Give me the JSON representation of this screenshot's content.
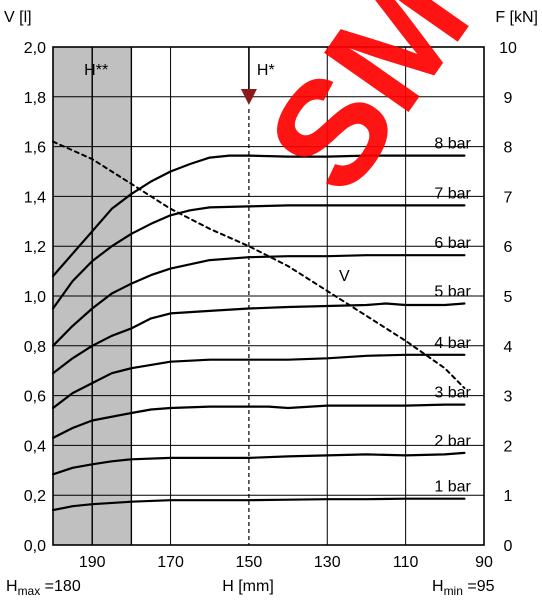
{
  "watermark_text": "SM",
  "chart_data": {
    "type": "line",
    "title": "",
    "x_axis": {
      "label": "H [mm]",
      "range": [
        200,
        90
      ],
      "ticks": [
        190,
        170,
        150,
        130,
        110,
        90
      ],
      "tick_labels": [
        "190",
        "170",
        "150",
        "130",
        "110",
        "90"
      ]
    },
    "y_left": {
      "label": "V [l]",
      "range": [
        0,
        2
      ],
      "ticks": [
        0,
        0.2,
        0.4,
        0.6,
        0.8,
        1.0,
        1.2,
        1.4,
        1.6,
        1.8,
        2.0
      ],
      "tick_labels": [
        "0,0",
        "0,2",
        "0,4",
        "0,6",
        "0,8",
        "1,0",
        "1,2",
        "1,4",
        "1,6",
        "1,8",
        "2,0"
      ]
    },
    "y_right": {
      "label": "F [kN]",
      "range": [
        0,
        10
      ],
      "ticks": [
        0,
        1,
        2,
        3,
        4,
        5,
        6,
        7,
        8,
        9,
        10
      ],
      "tick_labels": [
        "0",
        "1",
        "2",
        "3",
        "4",
        "5",
        "6",
        "7",
        "8",
        "9",
        "10"
      ]
    },
    "grid": true,
    "shaded_region": {
      "x_from": 200,
      "x_to": 180,
      "label": "H**",
      "color": "#c0c0c0"
    },
    "vertical_lines": [
      {
        "x": 190,
        "style": "solid"
      },
      {
        "x": 180,
        "style": "solid"
      },
      {
        "x": 150,
        "style": "dashed",
        "label": "H*"
      }
    ],
    "footer_labels": {
      "hmax_prefix": "H",
      "hmax_sub": "max",
      "hmax_value": " =180",
      "hmin_prefix": "H",
      "hmin_sub": "min",
      "hmin_value": " =95"
    },
    "series": [
      {
        "name": "1 bar",
        "axis": "right",
        "points": [
          [
            200,
            0.7
          ],
          [
            195,
            0.78
          ],
          [
            190,
            0.82
          ],
          [
            180,
            0.87
          ],
          [
            170,
            0.9
          ],
          [
            160,
            0.9
          ],
          [
            150,
            0.9
          ],
          [
            140,
            0.91
          ],
          [
            130,
            0.92
          ],
          [
            120,
            0.92
          ],
          [
            110,
            0.93
          ],
          [
            100,
            0.93
          ],
          [
            95,
            0.93
          ]
        ]
      },
      {
        "name": "2 bar",
        "axis": "right",
        "points": [
          [
            200,
            1.42
          ],
          [
            195,
            1.55
          ],
          [
            190,
            1.62
          ],
          [
            185,
            1.68
          ],
          [
            180,
            1.72
          ],
          [
            170,
            1.75
          ],
          [
            160,
            1.75
          ],
          [
            150,
            1.75
          ],
          [
            140,
            1.78
          ],
          [
            130,
            1.8
          ],
          [
            120,
            1.82
          ],
          [
            110,
            1.8
          ],
          [
            100,
            1.82
          ],
          [
            95,
            1.85
          ]
        ]
      },
      {
        "name": "3 bar",
        "axis": "right",
        "points": [
          [
            200,
            2.15
          ],
          [
            195,
            2.35
          ],
          [
            190,
            2.5
          ],
          [
            180,
            2.65
          ],
          [
            175,
            2.72
          ],
          [
            170,
            2.75
          ],
          [
            160,
            2.78
          ],
          [
            150,
            2.78
          ],
          [
            145,
            2.78
          ],
          [
            140,
            2.75
          ],
          [
            130,
            2.8
          ],
          [
            120,
            2.8
          ],
          [
            110,
            2.8
          ],
          [
            100,
            2.82
          ],
          [
            95,
            2.82
          ]
        ]
      },
      {
        "name": "4 bar",
        "axis": "right",
        "points": [
          [
            200,
            2.75
          ],
          [
            195,
            3.05
          ],
          [
            190,
            3.25
          ],
          [
            185,
            3.45
          ],
          [
            180,
            3.55
          ],
          [
            170,
            3.68
          ],
          [
            160,
            3.72
          ],
          [
            150,
            3.72
          ],
          [
            140,
            3.72
          ],
          [
            130,
            3.75
          ],
          [
            120,
            3.8
          ],
          [
            110,
            3.82
          ],
          [
            100,
            3.82
          ],
          [
            95,
            3.82
          ]
        ]
      },
      {
        "name": "5 bar",
        "axis": "right",
        "points": [
          [
            200,
            3.45
          ],
          [
            195,
            3.75
          ],
          [
            190,
            4.0
          ],
          [
            185,
            4.2
          ],
          [
            180,
            4.35
          ],
          [
            175,
            4.55
          ],
          [
            170,
            4.65
          ],
          [
            160,
            4.7
          ],
          [
            150,
            4.75
          ],
          [
            140,
            4.78
          ],
          [
            130,
            4.8
          ],
          [
            120,
            4.82
          ],
          [
            115,
            4.85
          ],
          [
            110,
            4.82
          ],
          [
            100,
            4.82
          ],
          [
            95,
            4.85
          ]
        ]
      },
      {
        "name": "6 bar",
        "axis": "right",
        "points": [
          [
            200,
            4.0
          ],
          [
            195,
            4.4
          ],
          [
            190,
            4.75
          ],
          [
            185,
            5.05
          ],
          [
            180,
            5.25
          ],
          [
            175,
            5.42
          ],
          [
            170,
            5.55
          ],
          [
            160,
            5.72
          ],
          [
            150,
            5.78
          ],
          [
            140,
            5.8
          ],
          [
            130,
            5.8
          ],
          [
            120,
            5.82
          ],
          [
            110,
            5.82
          ],
          [
            100,
            5.82
          ],
          [
            95,
            5.82
          ]
        ]
      },
      {
        "name": "7 bar",
        "axis": "right",
        "points": [
          [
            200,
            4.75
          ],
          [
            195,
            5.3
          ],
          [
            190,
            5.7
          ],
          [
            185,
            6.0
          ],
          [
            180,
            6.25
          ],
          [
            175,
            6.45
          ],
          [
            170,
            6.62
          ],
          [
            165,
            6.72
          ],
          [
            160,
            6.78
          ],
          [
            150,
            6.8
          ],
          [
            140,
            6.82
          ],
          [
            130,
            6.82
          ],
          [
            120,
            6.82
          ],
          [
            110,
            6.82
          ],
          [
            100,
            6.82
          ],
          [
            95,
            6.82
          ]
        ]
      },
      {
        "name": "8 bar",
        "axis": "right",
        "points": [
          [
            200,
            5.4
          ],
          [
            195,
            5.85
          ],
          [
            190,
            6.3
          ],
          [
            185,
            6.75
          ],
          [
            180,
            7.05
          ],
          [
            175,
            7.3
          ],
          [
            170,
            7.5
          ],
          [
            165,
            7.65
          ],
          [
            160,
            7.78
          ],
          [
            155,
            7.82
          ],
          [
            150,
            7.82
          ],
          [
            140,
            7.8
          ],
          [
            130,
            7.8
          ],
          [
            120,
            7.82
          ],
          [
            110,
            7.82
          ],
          [
            100,
            7.82
          ],
          [
            95,
            7.82
          ]
        ]
      },
      {
        "name": "V",
        "axis": "left",
        "style": "dashed",
        "points": [
          [
            200,
            1.62
          ],
          [
            190,
            1.55
          ],
          [
            180,
            1.45
          ],
          [
            170,
            1.35
          ],
          [
            160,
            1.27
          ],
          [
            150,
            1.2
          ],
          [
            140,
            1.12
          ],
          [
            130,
            1.02
          ],
          [
            120,
            0.92
          ],
          [
            110,
            0.82
          ],
          [
            100,
            0.71
          ],
          [
            95,
            0.63
          ]
        ]
      }
    ]
  }
}
